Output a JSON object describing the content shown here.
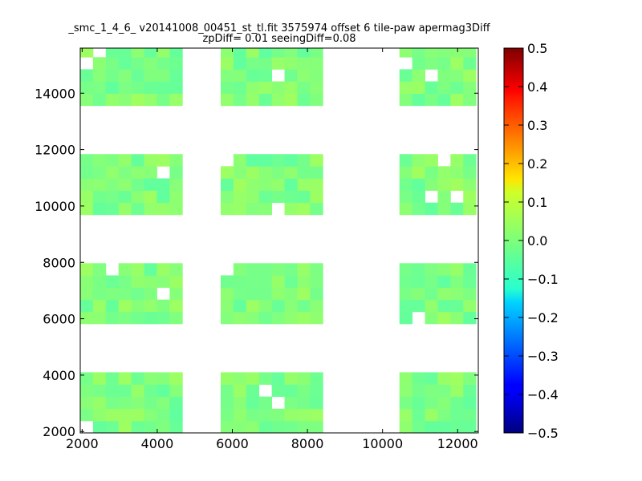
{
  "chart_data": {
    "type": "heatmap",
    "title": "_smc_1_4_6_ v20141008_00451_st_tl.fit 3575974 offset 6 tile-paw apermag3Diff",
    "subtitle": "zpDiff= 0.01 seeingDiff=0.08",
    "xlabel": "",
    "ylabel": "",
    "xlim": [
      1950,
      12550
    ],
    "ylim": [
      1950,
      15600
    ],
    "x_ticks": [
      2000,
      4000,
      6000,
      8000,
      10000,
      12000
    ],
    "y_ticks": [
      2000,
      4000,
      6000,
      8000,
      10000,
      12000,
      14000
    ],
    "grid": false,
    "colormap": "jet",
    "color_range": [
      -0.5,
      0.5
    ],
    "colorbar_ticks": [
      "0.5",
      "0.4",
      "0.3",
      "0.2",
      "0.1",
      "0.0",
      "−0.1",
      "−0.2",
      "−0.3",
      "−0.4",
      "−0.5"
    ],
    "colorbar_values": [
      0.5,
      0.4,
      0.3,
      0.2,
      0.1,
      0.0,
      -0.1,
      -0.2,
      -0.3,
      -0.4,
      -0.5
    ],
    "cell_size": [
      340,
      430
    ],
    "x_start": 1950,
    "y_start": 1950,
    "columns": 31,
    "rows": 32,
    "x_bands": [
      [
        0,
        8
      ],
      [
        11,
        19
      ],
      [
        25,
        33
      ]
    ],
    "y_bands": [
      [
        0,
        5
      ],
      [
        9,
        14
      ],
      [
        18,
        23
      ],
      [
        27,
        32
      ]
    ],
    "value_range": [
      -0.08,
      0.06
    ]
  }
}
